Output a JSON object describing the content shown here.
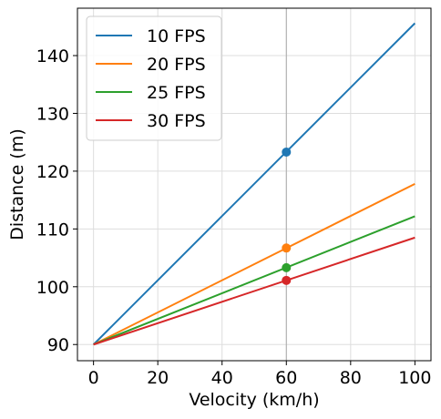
{
  "chart_data": {
    "type": "line",
    "title": "",
    "xlabel": "Velocity (km/h)",
    "ylabel": "Distance (m)",
    "xlim": [
      -5,
      105
    ],
    "ylim": [
      87.2,
      148.2
    ],
    "xticks": [
      0,
      20,
      40,
      60,
      80,
      100
    ],
    "yticks": [
      90,
      100,
      110,
      120,
      130,
      140
    ],
    "grid": true,
    "legend_position": "top-left",
    "x": [
      0,
      100
    ],
    "series": [
      {
        "name": "10 FPS",
        "color": "#1f77b4",
        "values": [
          90.0,
          145.6
        ],
        "marker": {
          "x": 60,
          "y": 123.3
        }
      },
      {
        "name": "20 FPS",
        "color": "#ff7f0e",
        "values": [
          90.0,
          117.8
        ],
        "marker": {
          "x": 60,
          "y": 106.7
        }
      },
      {
        "name": "25 FPS",
        "color": "#2ca02c",
        "values": [
          90.0,
          112.2
        ],
        "marker": {
          "x": 60,
          "y": 103.3
        }
      },
      {
        "name": "30 FPS",
        "color": "#d62728",
        "values": [
          90.0,
          108.5
        ],
        "marker": {
          "x": 60,
          "y": 101.1
        }
      }
    ]
  }
}
